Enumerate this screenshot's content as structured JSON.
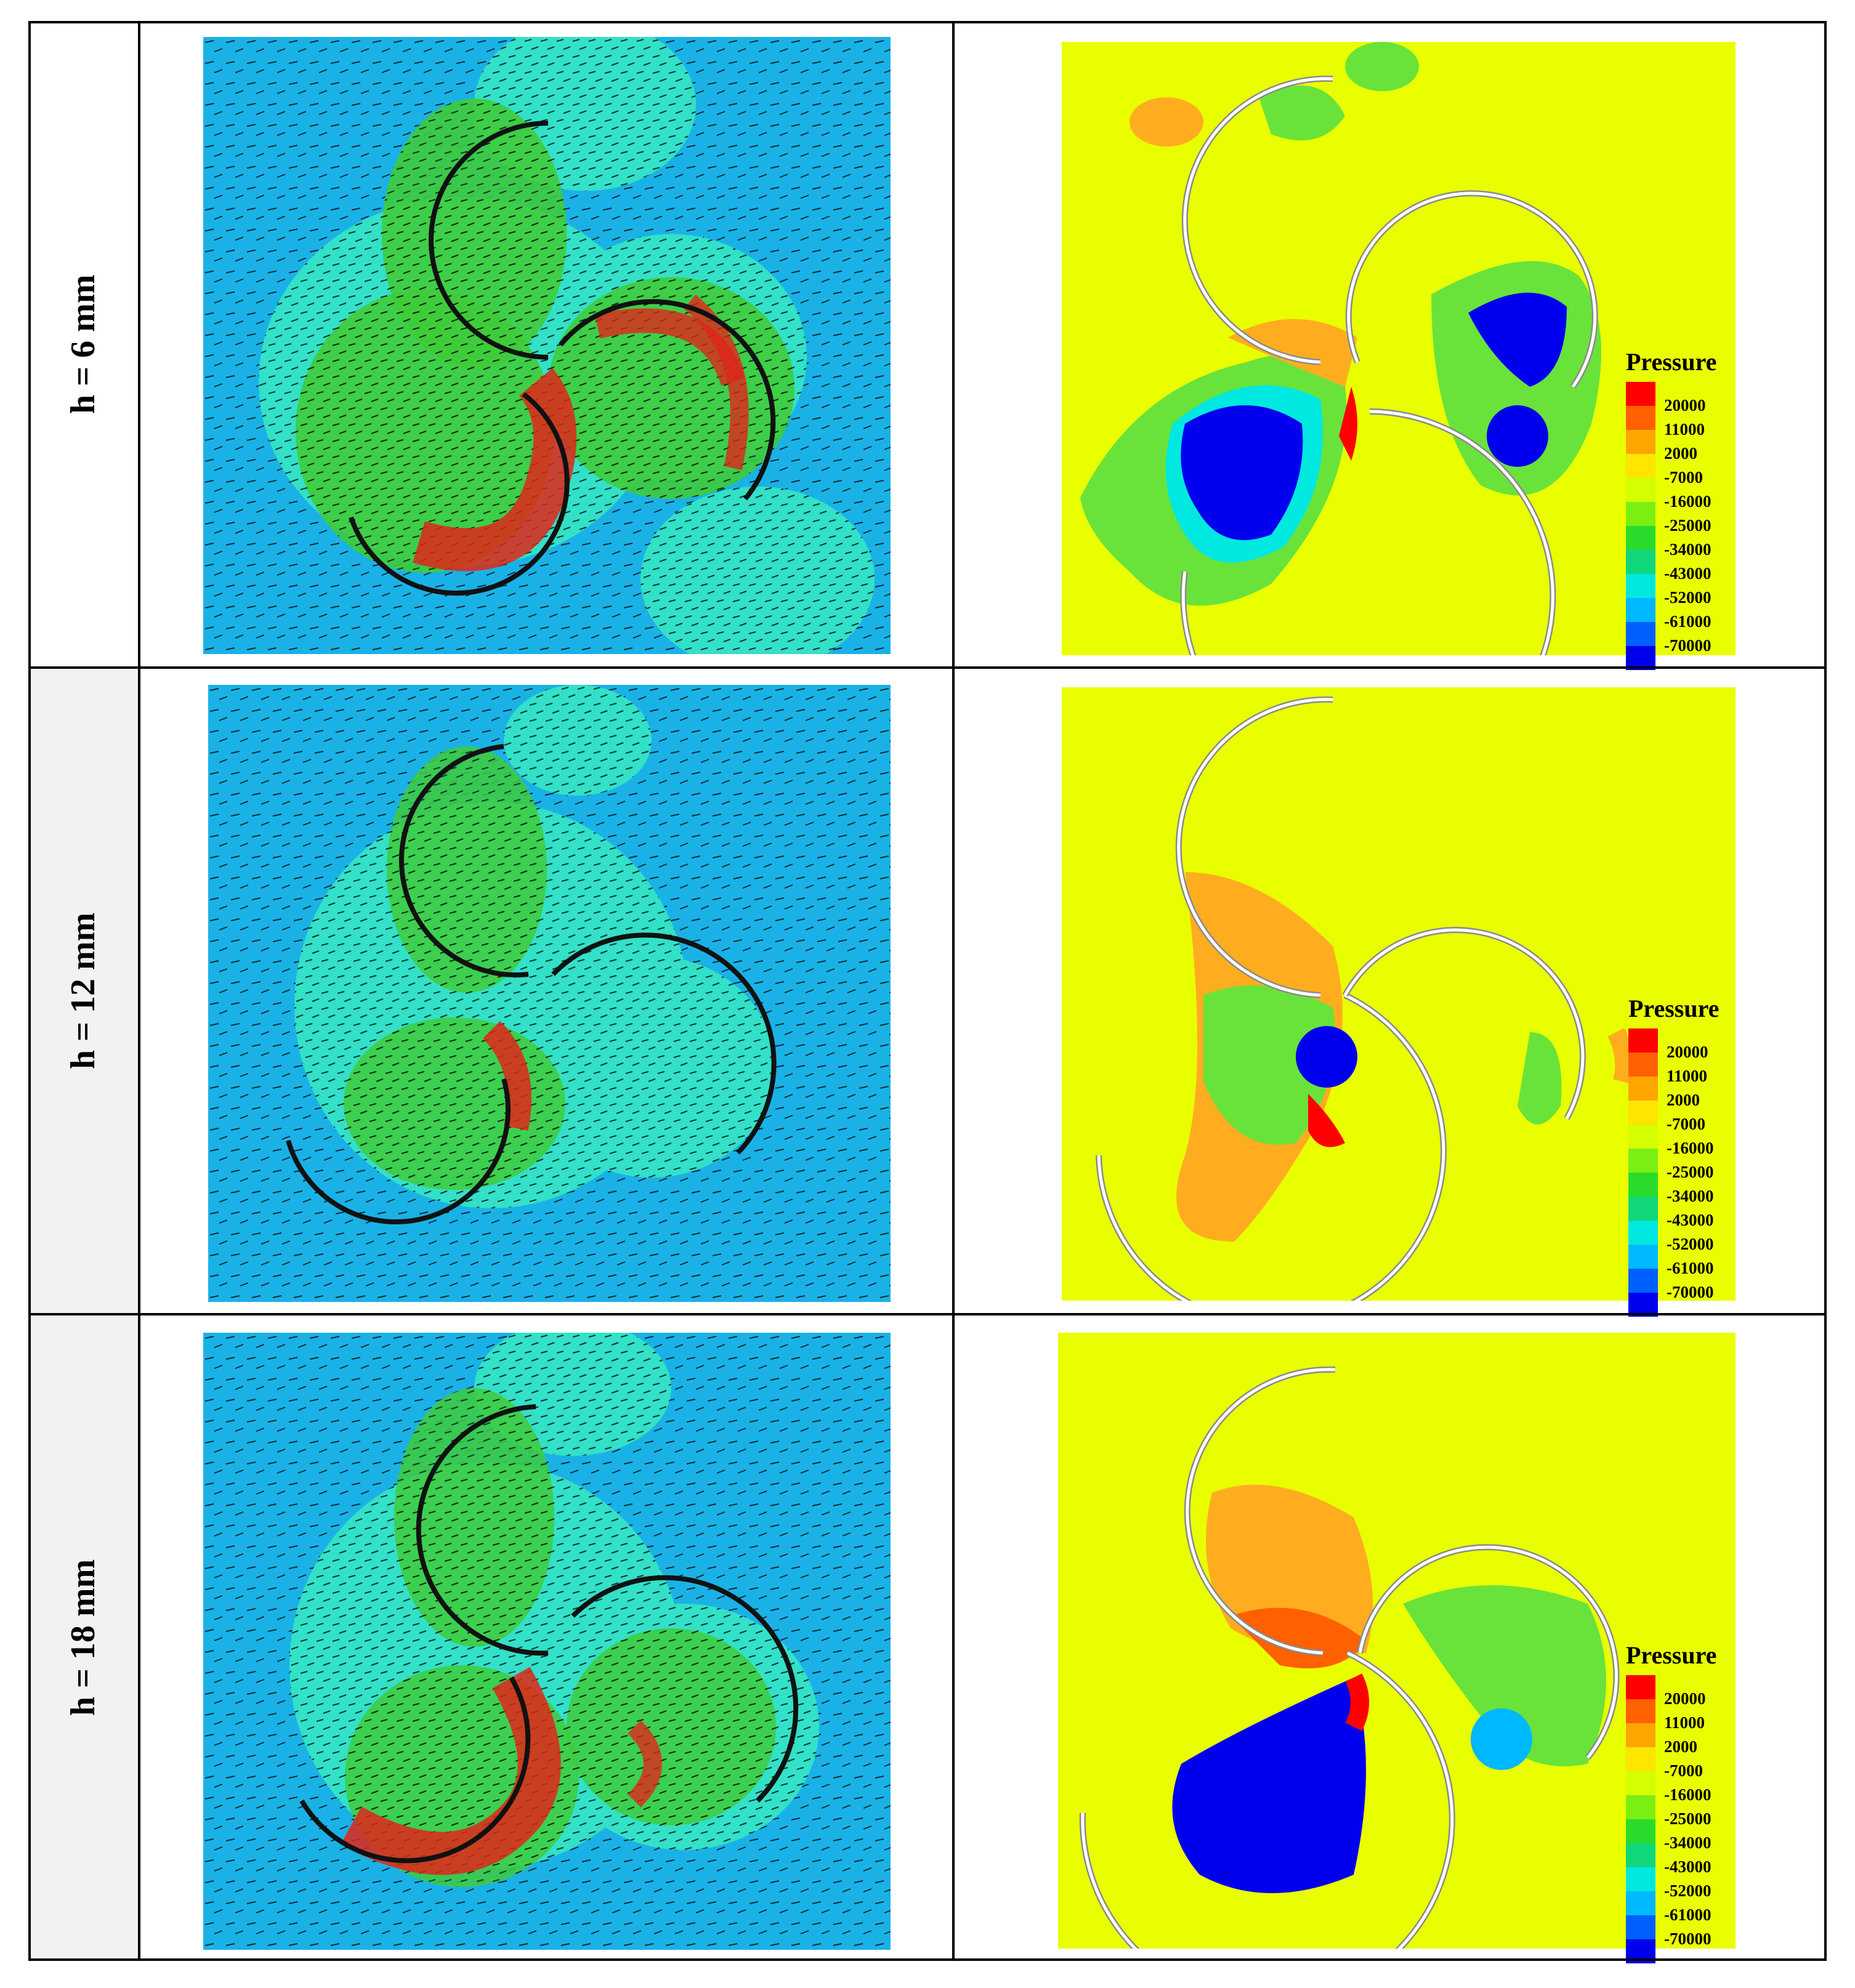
{
  "rows": [
    {
      "label": "h = 6 mm"
    },
    {
      "label": "h = 12 mm"
    },
    {
      "label": "h = 18 mm"
    }
  ],
  "legend": {
    "title": "Pressure",
    "levels": [
      "20000",
      "11000",
      "2000",
      "-7000",
      "-16000",
      "-25000",
      "-34000",
      "-43000",
      "-52000",
      "-61000",
      "-70000"
    ],
    "colors": [
      "#ff0000",
      "#ff6000",
      "#ffa500",
      "#ffe500",
      "#d4ff00",
      "#7bef12",
      "#2bdb2b",
      "#10d77a",
      "#00e8e0",
      "#00b8ff",
      "#0060ff",
      "#0000ee"
    ]
  },
  "colors": {
    "velocity_background": "#1ab2e6",
    "velocity_mid": "#33e0c8",
    "velocity_green": "#3fcc3a",
    "velocity_high": "#e0261a",
    "pressure_background": "#e9ff00",
    "pressure_low": "#0000ee",
    "pressure_green": "#69e33a",
    "pressure_orange": "#ffad1f",
    "pressure_red": "#ff0000"
  }
}
